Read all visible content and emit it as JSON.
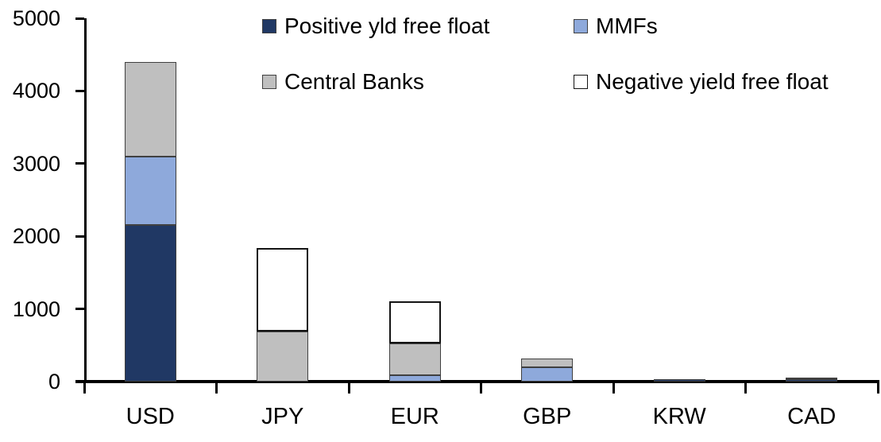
{
  "chart_data": {
    "type": "bar",
    "variant": "stacked-vertical",
    "title": "",
    "xlabel": "",
    "ylabel": "",
    "categories": [
      "USD",
      "JPY",
      "EUR",
      "GBP",
      "KRW",
      "CAD"
    ],
    "series": [
      {
        "name": "Positive yld free float",
        "color": "#203864",
        "values": [
          2150,
          0,
          0,
          0,
          35,
          30
        ]
      },
      {
        "name": "MMFs",
        "color": "#8EA9DB",
        "values": [
          950,
          0,
          90,
          200,
          0,
          0
        ]
      },
      {
        "name": "Central Banks",
        "color": "#BFBFBF",
        "values": [
          1300,
          690,
          430,
          120,
          0,
          25
        ]
      },
      {
        "name": "Negative yield free float",
        "color": "#FFFFFF",
        "values": [
          0,
          1150,
          580,
          0,
          0,
          0
        ]
      }
    ],
    "totals": [
      4400,
      1840,
      1100,
      320,
      35,
      55
    ],
    "ylim": [
      0,
      5000
    ],
    "ytick_interval": 1000,
    "ytick_labels": [
      "0",
      "1000",
      "2000",
      "3000",
      "4000",
      "5000"
    ],
    "grid": false,
    "legend_position": "top",
    "axis_color": "#000000",
    "segment_border_color": "#404040",
    "background_color": "#FFFFFF"
  }
}
